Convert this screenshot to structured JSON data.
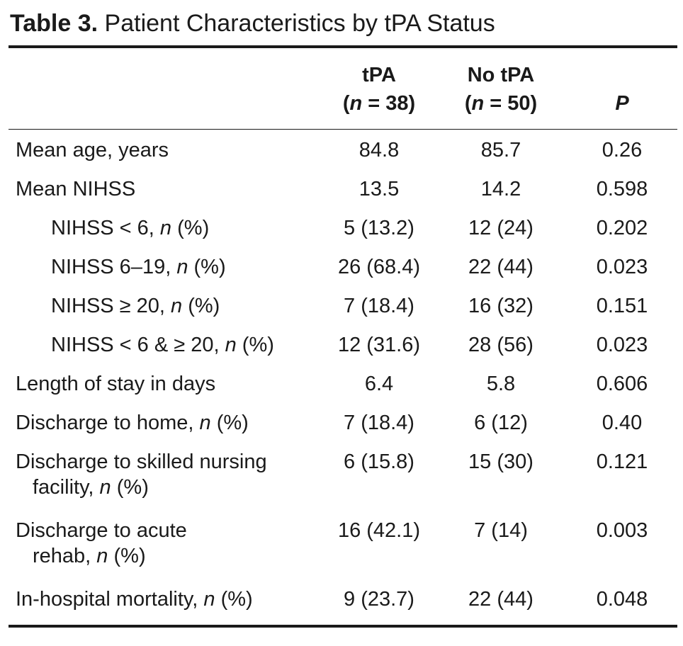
{
  "title": {
    "label": "Table 3.",
    "text": "Patient Characteristics by tPA Status"
  },
  "columns": [
    {
      "line1": "tPA",
      "line2_n": "n",
      "line2_rest": " = 38)"
    },
    {
      "line1": "No tPA",
      "line2_n": "n",
      "line2_rest": " = 50)"
    },
    {
      "line1": "",
      "line2_p": "P"
    }
  ],
  "rows": [
    {
      "label": "Mean age, years",
      "tpa": "84.8",
      "no_tpa": "85.7",
      "p": "0.26"
    },
    {
      "label": "Mean NIHSS",
      "tpa": "13.5",
      "no_tpa": "14.2",
      "p": "0.598"
    },
    {
      "label_pre": "NIHSS < 6, ",
      "label_n": "n",
      "label_post": " (%)",
      "tpa": "5 (13.2)",
      "no_tpa": "12 (24)",
      "p": "0.202"
    },
    {
      "label_pre": "NIHSS 6–19, ",
      "label_n": "n",
      "label_post": " (%)",
      "tpa": "26 (68.4)",
      "no_tpa": "22 (44)",
      "p": "0.023"
    },
    {
      "label_pre": "NIHSS ≥ 20, ",
      "label_n": "n",
      "label_post": " (%)",
      "tpa": "7 (18.4)",
      "no_tpa": "16 (32)",
      "p": "0.151"
    },
    {
      "label_pre": "NIHSS < 6 & ≥ 20, ",
      "label_n": "n",
      "label_post": " (%)",
      "tpa": "12 (31.6)",
      "no_tpa": "28 (56)",
      "p": "0.023"
    },
    {
      "label": "Length of stay in days",
      "tpa": "6.4",
      "no_tpa": "5.8",
      "p": "0.606"
    },
    {
      "label_pre": "Discharge to home, ",
      "label_n": "n",
      "label_post": " (%)",
      "tpa": "7 (18.4)",
      "no_tpa": "6 (12)",
      "p": "0.40"
    },
    {
      "label_line1": "Discharge to skilled nursing",
      "label_line2_pre": "facility, ",
      "label_n": "n",
      "label_post": " (%)",
      "tpa": "6 (15.8)",
      "no_tpa": "15 (30)",
      "p": "0.121"
    },
    {
      "label_line1": "Discharge to acute",
      "label_line2_pre": "rehab, ",
      "label_n": "n",
      "label_post": " (%)",
      "tpa": "16 (42.1)",
      "no_tpa": "7 (14)",
      "p": "0.003"
    },
    {
      "label_pre": "In-hospital mortality, ",
      "label_n": "n",
      "label_post": " (%)",
      "tpa": "9 (23.7)",
      "no_tpa": "22 (44)",
      "p": "0.048"
    }
  ]
}
